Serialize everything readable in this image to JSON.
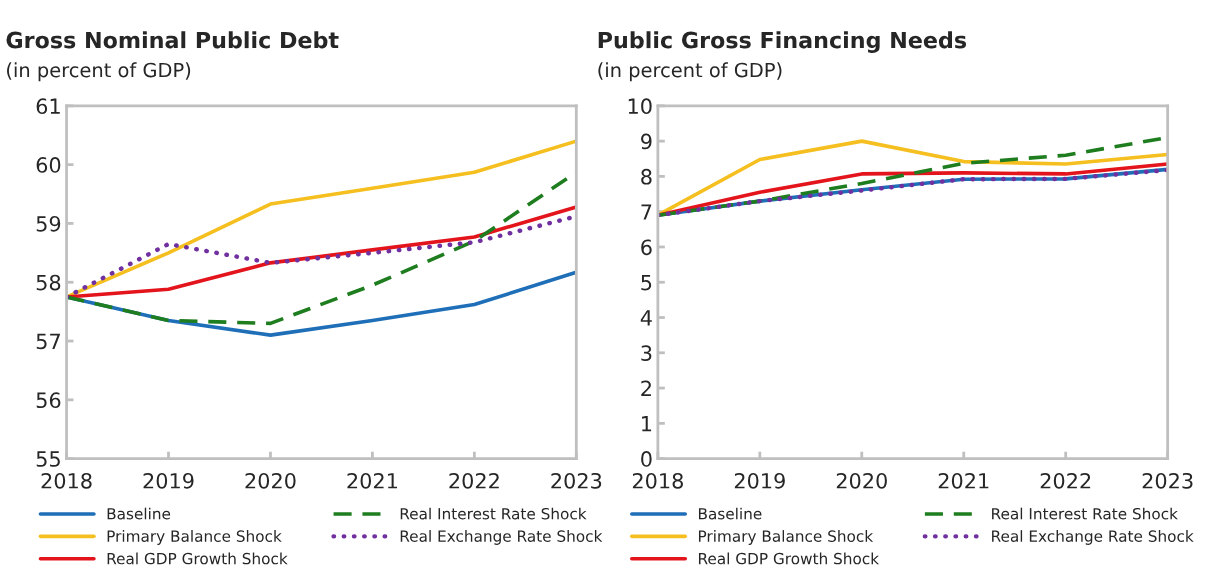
{
  "chart_data": [
    {
      "type": "line",
      "title": "Gross Nominal Public Debt",
      "subtitle": "(in percent of GDP)",
      "categories": [
        "2018",
        "2019",
        "2020",
        "2021",
        "2022",
        "2023"
      ],
      "ylim": [
        55,
        61
      ],
      "yticks": [
        55,
        56,
        57,
        58,
        59,
        60,
        61
      ],
      "legend": "bottom",
      "grid": false,
      "series": [
        {
          "name": "Baseline",
          "color": "#1f6fb8",
          "line_style": "solid",
          "values": [
            57.75,
            57.35,
            57.1,
            57.35,
            57.62,
            58.17
          ]
        },
        {
          "name": "Primary Balance Shock",
          "color": "#f5bf1f",
          "line_style": "solid",
          "values": [
            57.75,
            58.5,
            59.33,
            59.6,
            59.87,
            60.4
          ]
        },
        {
          "name": "Real GDP Growth Shock",
          "color": "#e3141c",
          "line_style": "solid",
          "values": [
            57.75,
            57.88,
            58.33,
            58.55,
            58.77,
            59.28
          ]
        },
        {
          "name": "Real Interest Rate Shock",
          "color": "#1e7d1e",
          "line_style": "dashed",
          "values": [
            57.75,
            57.35,
            57.3,
            57.95,
            58.7,
            59.87
          ]
        },
        {
          "name": "Real Exchange Rate Shock",
          "color": "#7030a0",
          "line_style": "dotted",
          "values": [
            57.75,
            58.65,
            58.33,
            58.5,
            58.68,
            59.12
          ]
        }
      ]
    },
    {
      "type": "line",
      "title": "Public Gross Financing Needs",
      "subtitle": "(in percent of GDP)",
      "categories": [
        "2018",
        "2019",
        "2020",
        "2021",
        "2022",
        "2023"
      ],
      "ylim": [
        0,
        10
      ],
      "yticks": [
        0,
        1,
        2,
        3,
        4,
        5,
        6,
        7,
        8,
        9,
        10
      ],
      "legend": "bottom",
      "grid": false,
      "series": [
        {
          "name": "Baseline",
          "color": "#1f6fb8",
          "line_style": "solid",
          "values": [
            6.9,
            7.3,
            7.62,
            7.92,
            7.93,
            8.2
          ]
        },
        {
          "name": "Primary Balance Shock",
          "color": "#f5bf1f",
          "line_style": "solid",
          "values": [
            6.9,
            8.48,
            9.0,
            8.42,
            8.35,
            8.62
          ]
        },
        {
          "name": "Real GDP Growth Shock",
          "color": "#e3141c",
          "line_style": "solid",
          "values": [
            6.9,
            7.55,
            8.07,
            8.1,
            8.07,
            8.35
          ]
        },
        {
          "name": "Real Interest Rate Shock",
          "color": "#1e7d1e",
          "line_style": "dashed",
          "values": [
            6.9,
            7.3,
            7.8,
            8.37,
            8.6,
            9.1
          ]
        },
        {
          "name": "Real Exchange Rate Shock",
          "color": "#7030a0",
          "line_style": "dotted",
          "values": [
            6.9,
            7.3,
            7.6,
            7.92,
            7.93,
            8.18
          ]
        }
      ]
    }
  ]
}
